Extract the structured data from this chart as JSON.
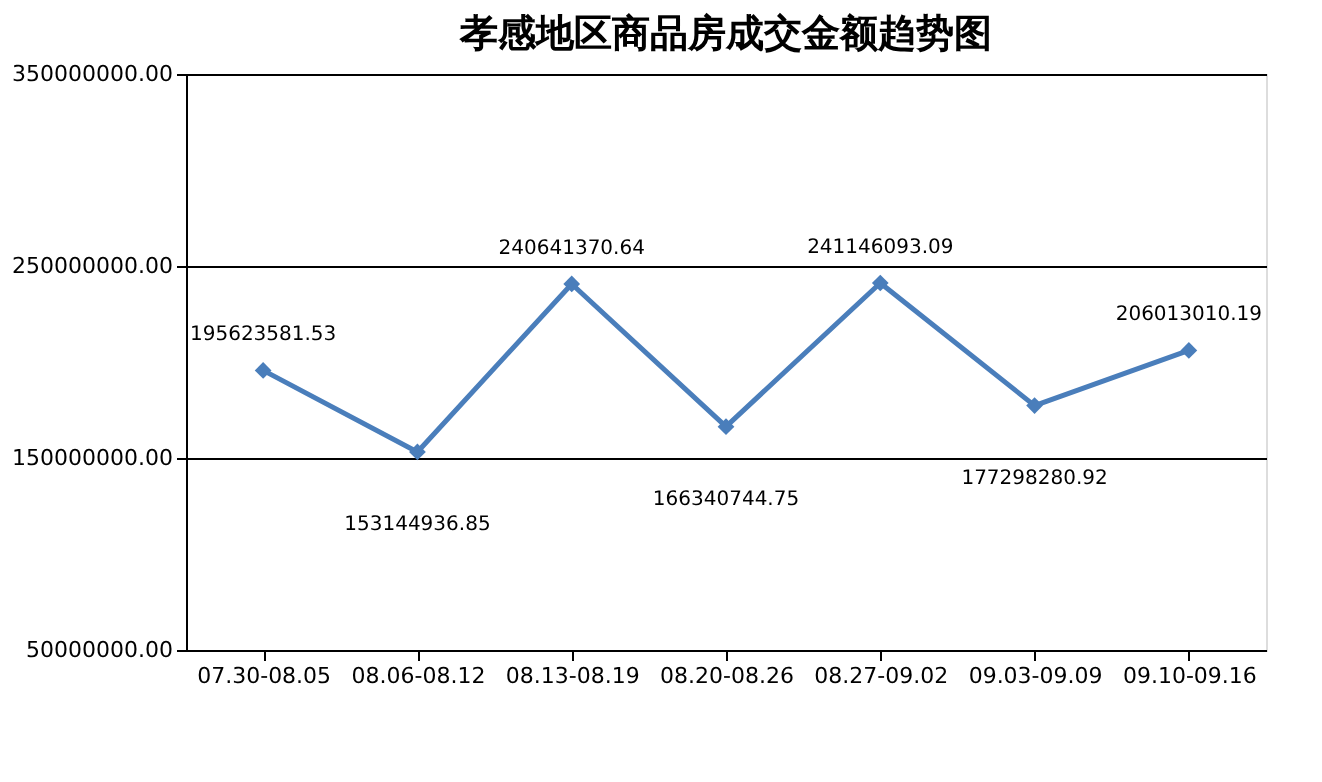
{
  "chart_data": {
    "type": "line",
    "title": "孝感地区商品房成交金额趋势图",
    "categories": [
      "07.30-08.05",
      "08.06-08.12",
      "08.13-08.19",
      "08.20-08.26",
      "08.27-09.02",
      "09.03-09.09",
      "09.10-09.16"
    ],
    "series": [
      {
        "color": "#4a7ebb",
        "values": [
          195623581.53,
          153144936.85,
          240641370.64,
          166340744.75,
          241146093.09,
          177298280.92,
          206013010.19
        ]
      }
    ],
    "ylim": [
      50000000,
      350000000
    ],
    "yticks": [
      {
        "value": 50000000,
        "label": "50000000.00"
      },
      {
        "value": 150000000,
        "label": "150000000.00"
      },
      {
        "value": 250000000,
        "label": "250000000.00"
      },
      {
        "value": 350000000,
        "label": "350000000.00"
      }
    ],
    "grid": "y",
    "marker": "diamond",
    "line_style": "solid",
    "data_labels": true
  }
}
